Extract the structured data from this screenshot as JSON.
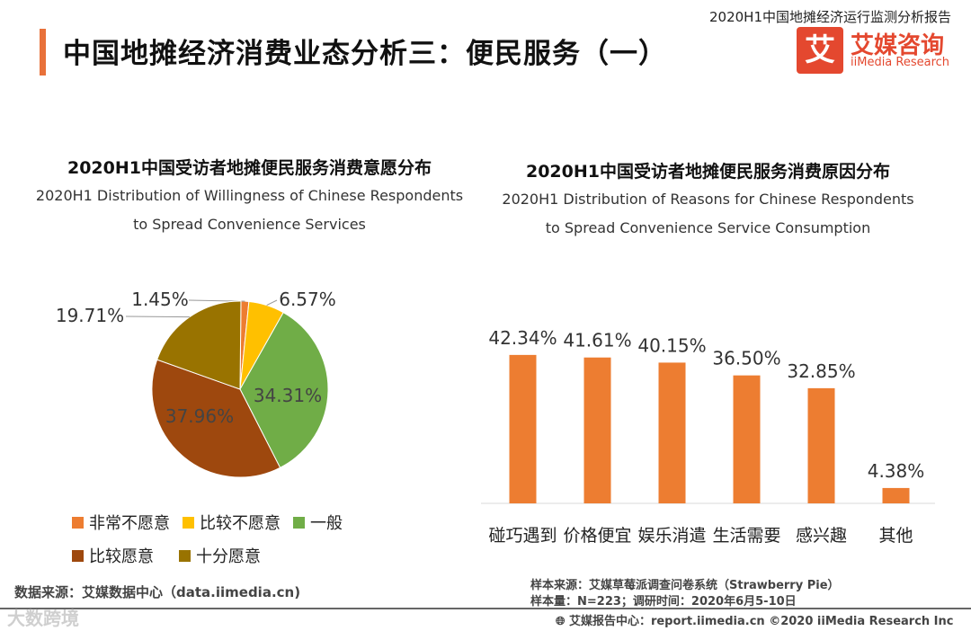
{
  "header": {
    "report_label": "2020H1中国地摊经济运行监测分析报告",
    "title": "中国地摊经济消费业态分析三：便民服务（一）",
    "logo_mark": "艾",
    "logo_cn": "艾媒咨询",
    "logo_en": "iiMedia Research"
  },
  "colors": {
    "accent": "#e8713a",
    "logo_red": "#e4482f",
    "bar": "#ed7d31"
  },
  "chart_data": [
    {
      "type": "pie",
      "title": "2020H1中国受访者地摊便民服务消费意愿分布",
      "subtitle_line1": "2020H1 Distribution of Willingness of Chinese Respondents",
      "subtitle_line2": "to Spread Convenience Services",
      "slices": [
        {
          "label": "非常不愿意",
          "value": 1.45,
          "display": "1.45%",
          "color": "#ed7d31"
        },
        {
          "label": "比较不愿意",
          "value": 6.57,
          "display": "6.57%",
          "color": "#ffc000"
        },
        {
          "label": "一般",
          "value": 34.31,
          "display": "34.31%",
          "color": "#70ad47"
        },
        {
          "label": "比较愿意",
          "value": 37.96,
          "display": "37.96%",
          "color": "#9e480e"
        },
        {
          "label": "十分愿意",
          "value": 19.71,
          "display": "19.71%",
          "color": "#997300"
        }
      ],
      "legend": [
        {
          "label": "非常不愿意",
          "color": "#ed7d31"
        },
        {
          "label": "比较不愿意",
          "color": "#ffc000"
        },
        {
          "label": "一般",
          "color": "#70ad47"
        },
        {
          "label": "比较愿意",
          "color": "#9e480e"
        },
        {
          "label": "十分愿意",
          "color": "#997300"
        }
      ]
    },
    {
      "type": "bar",
      "title": "2020H1中国受访者地摊便民服务消费原因分布",
      "subtitle_line1": "2020H1 Distribution of Reasons for Chinese Respondents",
      "subtitle_line2": "to Spread Convenience Service Consumption",
      "categories": [
        "碰巧遇到",
        "价格便宜",
        "娱乐消遣",
        "生活需要",
        "感兴趣",
        "其他"
      ],
      "values": [
        42.34,
        41.61,
        40.15,
        36.5,
        32.85,
        4.38
      ],
      "labels": [
        "42.34%",
        "41.61%",
        "40.15%",
        "36.50%",
        "32.85%",
        "4.38%"
      ],
      "ylim": [
        0,
        50
      ],
      "color": "#ed7d31"
    }
  ],
  "footer": {
    "data_source": "数据来源：艾媒数据中心（data.iimedia.cn)",
    "sample_source": "样本来源：艾媒草莓派调查问卷系统（Strawberry Pie）",
    "sample_size": "样本量：N=223；调研时间：2020年6月5-10日",
    "report_center": "艾媒报告中心：report.iimedia.cn  ©2020  iiMedia Research  Inc",
    "watermark": "大数跨境"
  }
}
